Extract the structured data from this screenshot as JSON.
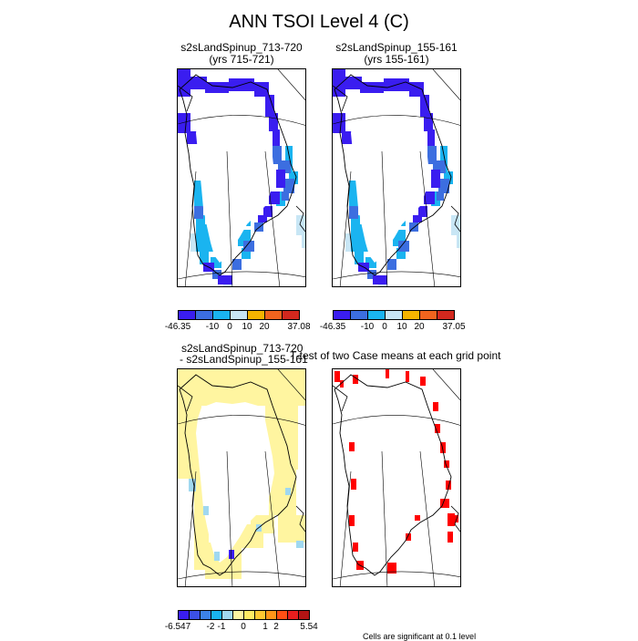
{
  "title": "ANN TSOI Level 4 (C)",
  "panels": {
    "case1": {
      "title_line1": "s2sLandSpinup_713-720",
      "title_line2": "(yrs 715-721)"
    },
    "case2": {
      "title_line1": "s2sLandSpinup_155-161",
      "title_line2": "(yrs 155-161)"
    },
    "diff": {
      "title_line1": "s2sLandSpinup_713-720",
      "title_line2": "- s2sLandSpinup_155-161"
    },
    "ttest": {
      "title": "T-test of two Case means at each grid point",
      "footnote": "Cells are significant at 0.1 level"
    }
  },
  "colorbars": {
    "case1": {
      "labels": [
        "-46.35",
        "-10",
        "0",
        "10",
        "20",
        "37.08"
      ],
      "colors": [
        "#3a1df0",
        "#3c6ee0",
        "#1ab4f0",
        "#c8e6f5",
        "#f5b400",
        "#f0641e",
        "#d2281e"
      ]
    },
    "case2": {
      "labels": [
        "-46.35",
        "-10",
        "0",
        "10",
        "20",
        "37.05"
      ],
      "colors": [
        "#3a1df0",
        "#3c6ee0",
        "#1ab4f0",
        "#c8e6f5",
        "#f5b400",
        "#f0641e",
        "#d2281e"
      ]
    },
    "diff": {
      "labels": [
        "-6.547",
        "-2",
        "-1",
        "0",
        "1",
        "2",
        "5.54"
      ],
      "colors": [
        "#3a1df0",
        "#3c50e6",
        "#3c82e6",
        "#1ab4f0",
        "#a0d8f0",
        "#fff5a0",
        "#ffeb64",
        "#ffc832",
        "#ff9619",
        "#ff5014",
        "#e61e1e",
        "#b41414"
      ]
    }
  },
  "colors": {
    "cold": "#3a1df0",
    "cool": "#3c6ee0",
    "mild": "#1ab4f0",
    "pale": "#c8e6f5",
    "diff_fill": "#fff5a0",
    "diff_blue": "#a0d8f0",
    "signif": "#ff0000"
  }
}
